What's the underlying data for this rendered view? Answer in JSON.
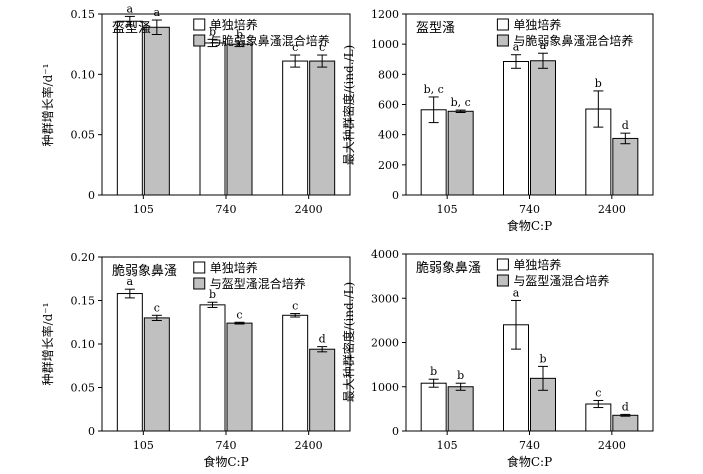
{
  "chart_data": [
    {
      "type": "bar",
      "panel": "top-left",
      "title": "盔型溞",
      "ylabel": "种群增长率/d⁻¹",
      "xlabel": "",
      "ylim": [
        0,
        0.15
      ],
      "yticks": [
        "0",
        "0.05",
        "0.10",
        "0.15"
      ],
      "categories": [
        "105",
        "740",
        "2400"
      ],
      "legend_position": "top-right",
      "series": [
        {
          "name": "单独培养",
          "color": "#ffffff",
          "values": [
            0.144,
            0.126,
            0.111
          ],
          "errors": [
            0.004,
            0.003,
            0.005
          ],
          "letters": [
            "a",
            "b",
            "c"
          ]
        },
        {
          "name": "与脆弱象鼻溞混合培养",
          "color": "#c0c0c0",
          "values": [
            0.139,
            0.125,
            0.111
          ],
          "errors": [
            0.006,
            0.002,
            0.005
          ],
          "letters": [
            "a",
            "b",
            "c"
          ]
        }
      ]
    },
    {
      "type": "bar",
      "panel": "top-right",
      "title": "盔型溞",
      "ylabel": "最大种群密度/(ind./L)",
      "xlabel": "食物C:P",
      "ylim": [
        0,
        1200
      ],
      "yticks": [
        "0",
        "200",
        "400",
        "600",
        "800",
        "1000",
        "1200"
      ],
      "categories": [
        "105",
        "740",
        "2400"
      ],
      "legend_position": "top-right",
      "series": [
        {
          "name": "单独培养",
          "color": "#ffffff",
          "values": [
            565,
            885,
            570
          ],
          "errors": [
            85,
            45,
            120
          ],
          "letters": [
            "b, c",
            "a",
            "b"
          ]
        },
        {
          "name": "与脆弱象鼻溞混合培养",
          "color": "#c0c0c0",
          "values": [
            555,
            890,
            375
          ],
          "errors": [
            8,
            50,
            35
          ],
          "letters": [
            "b, c",
            "a",
            "d"
          ]
        }
      ]
    },
    {
      "type": "bar",
      "panel": "bottom-left",
      "title": "脆弱象鼻溞",
      "ylabel": "种群增长率/d⁻¹",
      "xlabel": "食物C:P",
      "ylim": [
        0,
        0.2
      ],
      "yticks": [
        "0",
        "0.05",
        "0.10",
        "0.15",
        "0.20"
      ],
      "categories": [
        "105",
        "740",
        "2400"
      ],
      "legend_position": "top-right",
      "series": [
        {
          "name": "单独培养",
          "color": "#ffffff",
          "values": [
            0.158,
            0.145,
            0.133
          ],
          "errors": [
            0.005,
            0.003,
            0.002
          ],
          "letters": [
            "a",
            "b",
            "c"
          ]
        },
        {
          "name": "与盔型溞混合培养",
          "color": "#c0c0c0",
          "values": [
            0.13,
            0.124,
            0.094
          ],
          "errors": [
            0.003,
            0.001,
            0.003
          ],
          "letters": [
            "c",
            "c",
            "d"
          ]
        }
      ]
    },
    {
      "type": "bar",
      "panel": "bottom-right",
      "title": "脆弱象鼻溞",
      "ylabel": "最大种群密度/(ind./L)",
      "xlabel": "食物C:P",
      "ylim": [
        0,
        4000
      ],
      "yticks": [
        "0",
        "1000",
        "2000",
        "3000",
        "4000"
      ],
      "categories": [
        "105",
        "740",
        "2400"
      ],
      "legend_position": "top-right",
      "series": [
        {
          "name": "单独培养",
          "color": "#ffffff",
          "values": [
            1080,
            2400,
            610
          ],
          "errors": [
            90,
            550,
            80
          ],
          "letters": [
            "b",
            "a",
            "c"
          ]
        },
        {
          "name": "与盔型溞混合培养",
          "color": "#c0c0c0",
          "values": [
            1000,
            1190,
            355
          ],
          "errors": [
            80,
            270,
            20
          ],
          "letters": [
            "b",
            "b",
            "d"
          ]
        }
      ]
    }
  ]
}
